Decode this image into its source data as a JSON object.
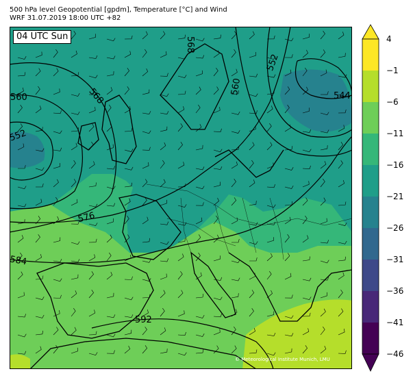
{
  "header": {
    "line1": "500 hPa level Geopotential [gpdm], Temperature [°C] and Wind",
    "line2": "WRF 31.07.2019 18:00 UTC +82"
  },
  "map": {
    "valid_time_label": "04 UTC Sun",
    "credit": "© Meteorological Institute Munich, LMU",
    "contour_labels": [
      "560",
      "568",
      "552",
      "576",
      "584",
      "592",
      "568",
      "560",
      "552",
      "544"
    ]
  },
  "colorbar": {
    "ticks": [
      "4",
      "−1",
      "−6",
      "−11",
      "−16",
      "−21",
      "−26",
      "−31",
      "−36",
      "−41",
      "−46"
    ],
    "colors": [
      "#fde725",
      "#b5de2b",
      "#6ece58",
      "#35b779",
      "#1f9e89",
      "#26828e",
      "#31688e",
      "#3e4989",
      "#482878",
      "#440154"
    ]
  }
}
